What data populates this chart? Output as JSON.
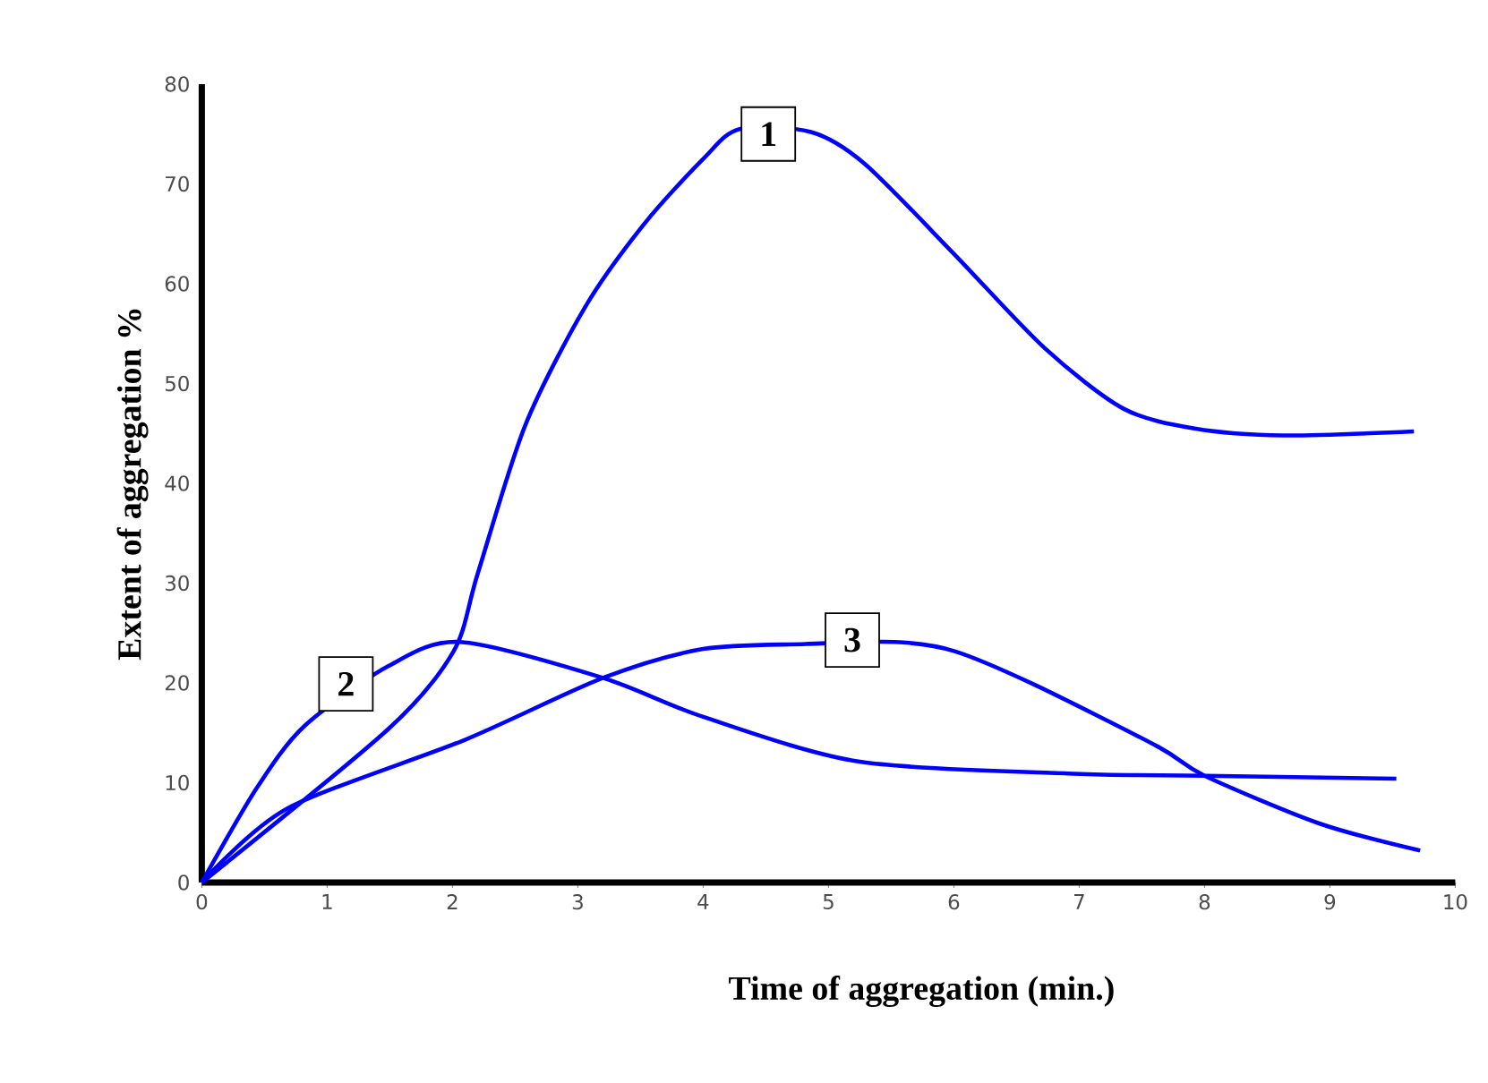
{
  "chart_data": {
    "type": "line",
    "xlabel": "Time of aggregation (min.)",
    "ylabel": "Extent of aggregation %",
    "xlim": [
      0,
      10
    ],
    "ylim": [
      0,
      80
    ],
    "xticks": [
      0,
      1,
      2,
      3,
      4,
      5,
      6,
      7,
      8,
      9,
      10
    ],
    "yticks": [
      0,
      10,
      20,
      30,
      40,
      50,
      60,
      70,
      80
    ],
    "series": [
      {
        "color": "#0000ff",
        "x": [
          0,
          1.49,
          2.01,
          2.2,
          2.58,
          3.06,
          3.53,
          4.0,
          4.29,
          4.86,
          5.29,
          6.0,
          6.72,
          7.35,
          7.92,
          8.63,
          9.67
        ],
        "values": [
          0,
          15.4,
          23.2,
          30.9,
          45.8,
          57.7,
          66,
          72.5,
          75.5,
          75.2,
          72,
          63,
          53.6,
          47.5,
          45.5,
          44.8,
          45.2
        ]
      },
      {
        "color": "#0000ff",
        "x": [
          0,
          0.44,
          0.82,
          1.49,
          2.06,
          3.2,
          4.0,
          5.25,
          6.96,
          8.0,
          9.53
        ],
        "values": [
          0,
          9.5,
          15.7,
          21.7,
          24.1,
          20.5,
          16.6,
          12.1,
          10.9,
          10.7,
          10.4
        ]
      },
      {
        "color": "#0000ff",
        "x": [
          0,
          0.68,
          2.1,
          3.2,
          4.0,
          4.82,
          5.53,
          6.0,
          6.63,
          7.63,
          8.0,
          8.92,
          9.72
        ],
        "values": [
          0,
          7.4,
          14.3,
          20.5,
          23.4,
          23.9,
          24.1,
          23.2,
          19.9,
          13.6,
          10.7,
          5.9,
          3.2
        ]
      }
    ],
    "annotations": [
      {
        "text": "1",
        "x": 4.52,
        "y": 75
      },
      {
        "text": "2",
        "x": 1.15,
        "y": 19.9
      },
      {
        "text": "3",
        "x": 5.19,
        "y": 24.3
      }
    ]
  }
}
